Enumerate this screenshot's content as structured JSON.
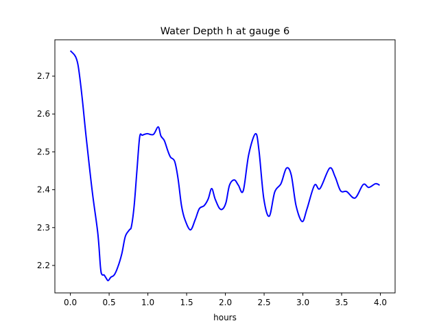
{
  "chart_data": {
    "type": "line",
    "title": "Water Depth h at gauge 6",
    "xlabel": "hours",
    "ylabel": "",
    "xlim": [
      -0.2,
      4.19
    ],
    "ylim": [
      2.1275,
      2.796
    ],
    "xticks": [
      0,
      0.5,
      1,
      1.5,
      2,
      2.5,
      3,
      3.5,
      4
    ],
    "xtick_labels": [
      "0.0",
      "0.5",
      "1.0",
      "1.5",
      "2.0",
      "2.5",
      "3.0",
      "3.5",
      "4.0"
    ],
    "yticks": [
      2.2,
      2.3,
      2.4,
      2.5,
      2.6,
      2.7
    ],
    "ytick_labels": [
      "2.2",
      "2.3",
      "2.4",
      "2.5",
      "2.6",
      "2.7"
    ],
    "grid": false,
    "series": [
      {
        "name": "h",
        "color": "#0000ff",
        "x": [
          0,
          0.053,
          0.08,
          0.106,
          0.15,
          0.204,
          0.283,
          0.354,
          0.389,
          0.407,
          0.434,
          0.46,
          0.487,
          0.522,
          0.566,
          0.611,
          0.664,
          0.708,
          0.761,
          0.788,
          0.823,
          0.858,
          0.894,
          0.929,
          0.991,
          1.071,
          1.133,
          1.168,
          1.212,
          1.257,
          1.292,
          1.345,
          1.389,
          1.434,
          1.478,
          1.549,
          1.611,
          1.664,
          1.726,
          1.779,
          1.823,
          1.867,
          1.92,
          1.965,
          2.009,
          2.053,
          2.115,
          2.168,
          2.23,
          2.301,
          2.389,
          2.434,
          2.496,
          2.566,
          2.637,
          2.717,
          2.788,
          2.85,
          2.912,
          2.991,
          3.053,
          3.15,
          3.221,
          3.345,
          3.416,
          3.487,
          3.566,
          3.673,
          3.779,
          3.85,
          3.938,
          3.991
        ],
        "y": [
          2.767,
          2.756,
          2.745,
          2.72,
          2.647,
          2.539,
          2.394,
          2.285,
          2.195,
          2.176,
          2.175,
          2.167,
          2.16,
          2.169,
          2.175,
          2.195,
          2.231,
          2.276,
          2.294,
          2.303,
          2.358,
          2.448,
          2.539,
          2.544,
          2.548,
          2.546,
          2.566,
          2.542,
          2.53,
          2.503,
          2.486,
          2.475,
          2.43,
          2.358,
          2.321,
          2.294,
          2.321,
          2.35,
          2.358,
          2.376,
          2.403,
          2.376,
          2.352,
          2.349,
          2.367,
          2.412,
          2.426,
          2.412,
          2.397,
          2.493,
          2.548,
          2.503,
          2.376,
          2.33,
          2.394,
          2.416,
          2.457,
          2.439,
          2.358,
          2.316,
          2.349,
          2.412,
          2.403,
          2.457,
          2.434,
          2.397,
          2.395,
          2.378,
          2.414,
          2.406,
          2.416,
          2.412
        ]
      }
    ]
  }
}
